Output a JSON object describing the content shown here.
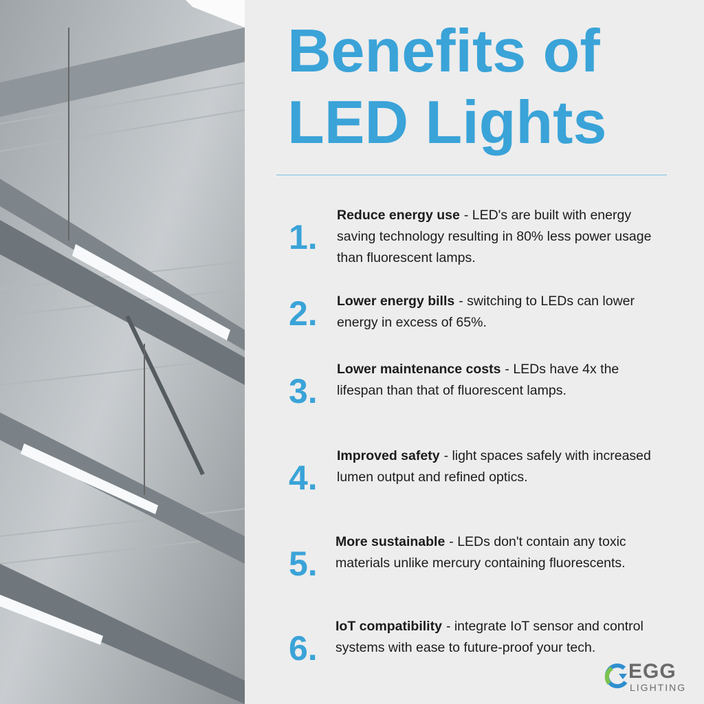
{
  "title": "Benefits of LED Lights",
  "items": [
    {
      "number": "1.",
      "heading": "Reduce energy use",
      "text": "- LED's are built with energy saving technology resulting in 80% less power usage than fluorescent lamps."
    },
    {
      "number": "2.",
      "heading": "Lower energy bills",
      "text": "- switching to LEDs can lower energy in excess of 65%."
    },
    {
      "number": "3.",
      "heading": "Lower maintenance costs",
      "text": "- LEDs have 4x the lifespan than that of fluorescent lamps."
    },
    {
      "number": "4.",
      "heading": "Improved safety",
      "text": "- light spaces safely with increased lumen output and refined optics."
    },
    {
      "number": "5.",
      "heading": "More sustainable",
      "text": "- LEDs don't contain any toxic materials unlike mercury containing fluorescents."
    },
    {
      "number": "6.",
      "heading": "IoT compatibility",
      "text": "- integrate IoT sensor and control systems with ease to future-proof your tech."
    }
  ],
  "logo": {
    "name": "EGG",
    "subtitle": "LIGHTING"
  }
}
